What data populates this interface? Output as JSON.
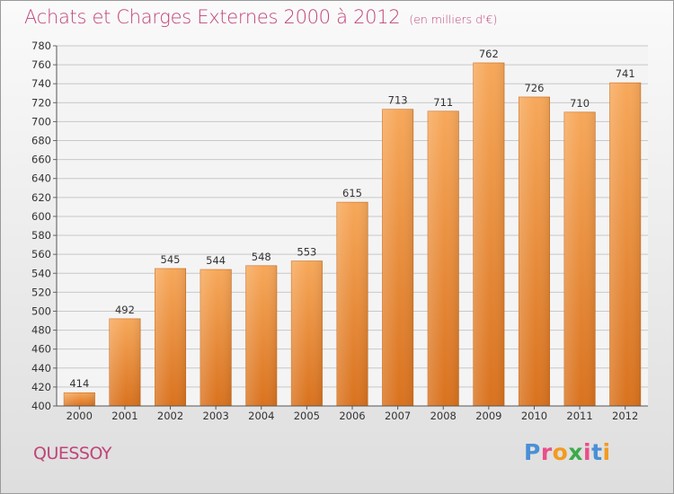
{
  "header": {
    "title": "Achats et Charges Externes 2000 à 2012",
    "unit": "(en milliers d'€)"
  },
  "footer": {
    "commune": "QUESSOY",
    "logo_letters": [
      "P",
      "r",
      "o",
      "x",
      "i",
      "t",
      "i"
    ]
  },
  "colors": {
    "title": "#c0447a",
    "bar_top": "#f7a85a",
    "bar_bottom": "#d9721e",
    "logo": [
      "#4a8fd6",
      "#e94f8a",
      "#f29b1f",
      "#3bab4a",
      "#e94f8a",
      "#4a8fd6",
      "#f29b1f"
    ]
  },
  "chart_data": {
    "type": "bar",
    "title": "Achats et Charges Externes 2000 à 2012",
    "subtitle": "(en milliers d'€)",
    "xlabel": "",
    "ylabel": "",
    "categories": [
      "2000",
      "2001",
      "2002",
      "2003",
      "2004",
      "2005",
      "2006",
      "2007",
      "2008",
      "2009",
      "2010",
      "2011",
      "2012"
    ],
    "values": [
      414,
      492,
      545,
      544,
      548,
      553,
      615,
      713,
      711,
      762,
      726,
      710,
      741
    ],
    "ylim": [
      400,
      780
    ],
    "yticks": [
      400,
      420,
      440,
      460,
      480,
      500,
      520,
      540,
      560,
      580,
      600,
      620,
      640,
      660,
      680,
      700,
      720,
      740,
      760,
      780
    ],
    "grid": true
  }
}
